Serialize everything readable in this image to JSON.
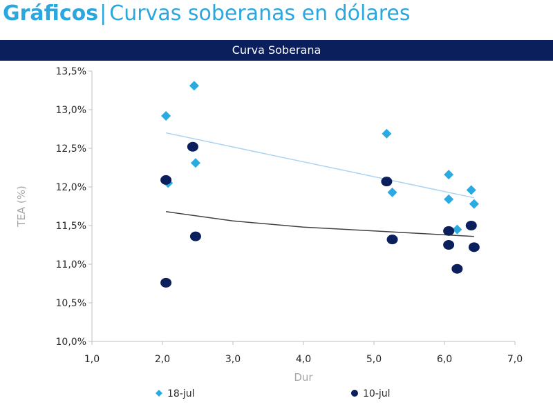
{
  "header": {
    "section": "Gráficos",
    "separator": "|",
    "subtitle": "Curvas soberanas en dólares"
  },
  "chart_data": {
    "type": "scatter",
    "title": "Curva Soberana",
    "xlabel": "Dur",
    "ylabel": "TEA (%)",
    "xlim": [
      1.0,
      7.0
    ],
    "ylim": [
      10.0,
      13.5
    ],
    "x_ticks": [
      "1,0",
      "2,0",
      "3,0",
      "4,0",
      "5,0",
      "6,0",
      "7,0"
    ],
    "y_ticks": [
      "10,0%",
      "10,5%",
      "11,0%",
      "11,5%",
      "12,0%",
      "12,5%",
      "13,0%",
      "13,5%"
    ],
    "grid": false,
    "legend_position": "bottom",
    "series": [
      {
        "name": "18-jul",
        "marker": "diamond",
        "color": "#29abe2",
        "trend_color": "#a9d4f2",
        "points": [
          [
            2.05,
            12.92
          ],
          [
            2.08,
            12.05
          ],
          [
            2.45,
            13.31
          ],
          [
            2.47,
            12.31
          ],
          [
            5.18,
            12.69
          ],
          [
            5.26,
            11.93
          ],
          [
            6.06,
            12.16
          ],
          [
            6.06,
            11.84
          ],
          [
            6.18,
            11.45
          ],
          [
            6.38,
            11.96
          ],
          [
            6.42,
            11.78
          ]
        ],
        "trendline": [
          [
            2.05,
            12.7
          ],
          [
            6.42,
            11.86
          ]
        ]
      },
      {
        "name": "10-jul",
        "marker": "circle",
        "color": "#0b1f5c",
        "trend_color": "#404040",
        "points": [
          [
            2.05,
            12.09
          ],
          [
            2.05,
            10.76
          ],
          [
            2.43,
            12.52
          ],
          [
            2.47,
            11.36
          ],
          [
            5.18,
            12.07
          ],
          [
            5.26,
            11.32
          ],
          [
            6.06,
            11.43
          ],
          [
            6.06,
            11.25
          ],
          [
            6.18,
            10.94
          ],
          [
            6.38,
            11.5
          ],
          [
            6.42,
            11.22
          ]
        ],
        "trendline": [
          [
            2.05,
            11.68
          ],
          [
            3.0,
            11.56
          ],
          [
            4.0,
            11.48
          ],
          [
            5.0,
            11.43
          ],
          [
            6.0,
            11.38
          ],
          [
            6.42,
            11.36
          ]
        ]
      }
    ]
  }
}
